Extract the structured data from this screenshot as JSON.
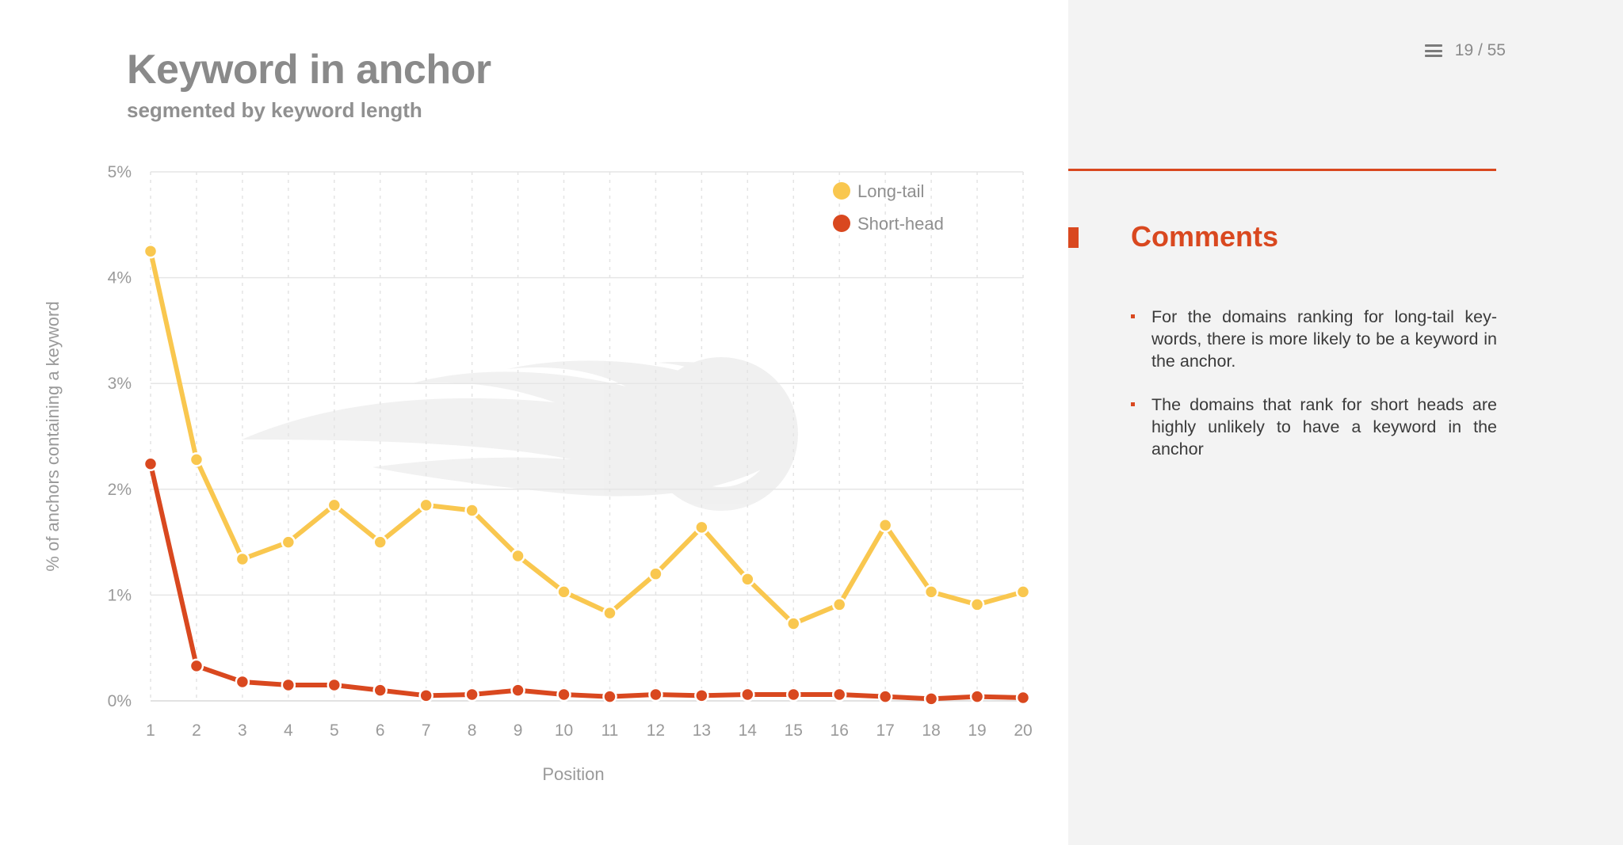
{
  "slide": {
    "title": "Keyword in anchor",
    "subtitle": "segmented by keyword length"
  },
  "pager": {
    "text": "19 / 55",
    "icon": "menu-icon"
  },
  "comments": {
    "title": "Comments",
    "items": [
      "For the domains ranking for long-tail key-words, there is more likely to be a keyword in the anchor.",
      "The domains that rank for short heads are highly unlikely to have a keyword in the anchor"
    ]
  },
  "colors": {
    "accent": "#d9481f",
    "long_tail": "#f9c74f",
    "short_head": "#d9481f"
  },
  "chart_data": {
    "type": "line",
    "title": "Keyword in anchor",
    "subtitle": "segmented by keyword length",
    "xlabel": "Position",
    "ylabel": "% of anchors containing a keyword",
    "x": [
      1,
      2,
      3,
      4,
      5,
      6,
      7,
      8,
      9,
      10,
      11,
      12,
      13,
      14,
      15,
      16,
      17,
      18,
      19,
      20
    ],
    "y_ticks": [
      "0%",
      "1%",
      "2%",
      "3%",
      "4%",
      "5%"
    ],
    "ylim": [
      0,
      5
    ],
    "grid": true,
    "legend_position": "top-right",
    "series": [
      {
        "name": "Long-tail",
        "color": "#f9c74f",
        "values": [
          4.25,
          2.28,
          1.34,
          1.5,
          1.85,
          1.5,
          1.85,
          1.8,
          1.37,
          1.03,
          0.83,
          1.2,
          1.64,
          1.15,
          0.73,
          0.91,
          1.66,
          1.03,
          0.91,
          1.03
        ]
      },
      {
        "name": "Short-head",
        "color": "#d9481f",
        "values": [
          2.24,
          0.33,
          0.18,
          0.15,
          0.15,
          0.1,
          0.05,
          0.06,
          0.1,
          0.06,
          0.04,
          0.06,
          0.05,
          0.06,
          0.06,
          0.06,
          0.04,
          0.02,
          0.04,
          0.03
        ]
      }
    ]
  }
}
